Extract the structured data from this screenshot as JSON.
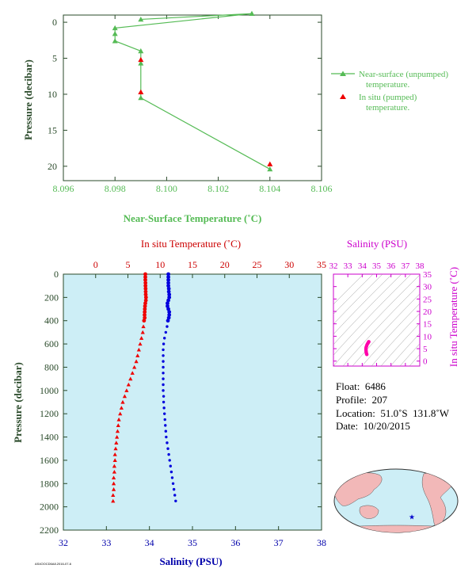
{
  "chart_data": [
    {
      "type": "line",
      "xlabel": "Near-Surface Temperature (˚C)",
      "ylabel": "Pressure (decibar)",
      "xlim": [
        8.096,
        8.106
      ],
      "ylim": [
        22,
        -1
      ],
      "x_ticks": [
        "8.096",
        "8.098",
        "8.100",
        "8.102",
        "8.104",
        "8.106"
      ],
      "y_ticks": [
        "0",
        "5",
        "10",
        "15",
        "20"
      ],
      "grid": false,
      "legend_position": "right",
      "series": [
        {
          "name": "Near-surface (unpumped) temperature.",
          "color": "#55bb55",
          "marker": "triangle",
          "points": [
            {
              "temp": 8.099,
              "pressure": -0.4
            },
            {
              "temp": 8.1033,
              "pressure": -1.2
            },
            {
              "temp": 8.098,
              "pressure": 0.8
            },
            {
              "temp": 8.098,
              "pressure": 1.6
            },
            {
              "temp": 8.098,
              "pressure": 2.6
            },
            {
              "temp": 8.099,
              "pressure": 4.0
            },
            {
              "temp": 8.099,
              "pressure": 5.7
            },
            {
              "temp": 8.099,
              "pressure": 10.5
            },
            {
              "temp": 8.104,
              "pressure": 20.4
            }
          ]
        },
        {
          "name": "In situ (pumped) temperature.",
          "color": "#ee0000",
          "marker": "triangle",
          "points": [
            {
              "temp": 8.099,
              "pressure": 5.2
            },
            {
              "temp": 8.099,
              "pressure": 9.7
            },
            {
              "temp": 8.104,
              "pressure": 19.7
            }
          ]
        }
      ]
    },
    {
      "type": "scatter",
      "top_axis_label": "In situ Temperature (˚C)",
      "bottom_axis_label": "Salinity (PSU)",
      "ylabel": "Pressure (decibar)",
      "temperature_lim": [
        -5,
        35
      ],
      "salinity_lim": [
        32,
        38
      ],
      "ylim": [
        2200,
        0
      ],
      "temperature_ticks": [
        "0",
        "5",
        "10",
        "15",
        "20",
        "25",
        "30",
        "35"
      ],
      "salinity_ticks": [
        "32",
        "33",
        "34",
        "35",
        "36",
        "37",
        "38"
      ],
      "y_ticks": [
        "0",
        "200",
        "400",
        "600",
        "800",
        "1000",
        "1200",
        "1400",
        "1600",
        "1800",
        "2000",
        "2200"
      ],
      "background": "#cdeef6",
      "temperature_color": "#ee0000",
      "salinity_color": "#0000dd",
      "temperature_profile": [
        [
          0,
          7.7
        ],
        [
          25,
          7.7
        ],
        [
          50,
          7.7
        ],
        [
          75,
          7.72
        ],
        [
          100,
          7.72
        ],
        [
          125,
          7.74
        ],
        [
          150,
          7.75
        ],
        [
          175,
          7.76
        ],
        [
          200,
          7.8
        ],
        [
          225,
          7.78
        ],
        [
          250,
          7.7
        ],
        [
          275,
          7.65
        ],
        [
          300,
          7.62
        ],
        [
          325,
          7.6
        ],
        [
          350,
          7.58
        ],
        [
          375,
          7.6
        ],
        [
          400,
          7.5
        ],
        [
          450,
          7.4
        ],
        [
          500,
          7.3
        ],
        [
          550,
          7.1
        ],
        [
          600,
          6.9
        ],
        [
          650,
          6.7
        ],
        [
          700,
          6.5
        ],
        [
          750,
          6.3
        ],
        [
          800,
          6.0
        ],
        [
          850,
          5.7
        ],
        [
          900,
          5.4
        ],
        [
          950,
          5.1
        ],
        [
          1000,
          4.8
        ],
        [
          1050,
          4.5
        ],
        [
          1100,
          4.2
        ],
        [
          1150,
          4.0
        ],
        [
          1200,
          3.8
        ],
        [
          1250,
          3.6
        ],
        [
          1300,
          3.5
        ],
        [
          1350,
          3.4
        ],
        [
          1400,
          3.3
        ],
        [
          1450,
          3.2
        ],
        [
          1500,
          3.1
        ],
        [
          1550,
          3.0
        ],
        [
          1600,
          3.0
        ],
        [
          1650,
          2.9
        ],
        [
          1700,
          2.9
        ],
        [
          1750,
          2.8
        ],
        [
          1800,
          2.8
        ],
        [
          1850,
          2.8
        ],
        [
          1900,
          2.7
        ],
        [
          1950,
          2.7
        ]
      ],
      "salinity_profile": [
        [
          0,
          34.44
        ],
        [
          25,
          34.44
        ],
        [
          50,
          34.44
        ],
        [
          75,
          34.44
        ],
        [
          100,
          34.44
        ],
        [
          125,
          34.45
        ],
        [
          150,
          34.45
        ],
        [
          175,
          34.46
        ],
        [
          200,
          34.46
        ],
        [
          225,
          34.44
        ],
        [
          250,
          34.42
        ],
        [
          275,
          34.42
        ],
        [
          300,
          34.44
        ],
        [
          325,
          34.46
        ],
        [
          350,
          34.46
        ],
        [
          375,
          34.45
        ],
        [
          400,
          34.43
        ],
        [
          450,
          34.41
        ],
        [
          500,
          34.38
        ],
        [
          550,
          34.35
        ],
        [
          600,
          34.33
        ],
        [
          650,
          34.32
        ],
        [
          700,
          34.32
        ],
        [
          750,
          34.32
        ],
        [
          800,
          34.32
        ],
        [
          850,
          34.32
        ],
        [
          900,
          34.32
        ],
        [
          950,
          34.32
        ],
        [
          1000,
          34.32
        ],
        [
          1050,
          34.33
        ],
        [
          1100,
          34.33
        ],
        [
          1150,
          34.34
        ],
        [
          1200,
          34.35
        ],
        [
          1250,
          34.36
        ],
        [
          1300,
          34.37
        ],
        [
          1350,
          34.38
        ],
        [
          1400,
          34.39
        ],
        [
          1450,
          34.41
        ],
        [
          1500,
          34.43
        ],
        [
          1550,
          34.45
        ],
        [
          1600,
          34.47
        ],
        [
          1650,
          34.49
        ],
        [
          1700,
          34.51
        ],
        [
          1750,
          34.53
        ],
        [
          1800,
          34.55
        ],
        [
          1850,
          34.57
        ],
        [
          1900,
          34.59
        ],
        [
          1950,
          34.61
        ]
      ]
    },
    {
      "type": "scatter",
      "xlabel": "Salinity (PSU)",
      "ylabel": "In situ Temperature (˚C)",
      "xlim": [
        32,
        38
      ],
      "ylim": [
        -2,
        35
      ],
      "x_ticks": [
        "32",
        "33",
        "34",
        "35",
        "36",
        "37",
        "38"
      ],
      "y_ticks": [
        "0",
        "5",
        "10",
        "15",
        "20",
        "25",
        "30",
        "35"
      ],
      "color": "#ff00aa",
      "axis_color": "#cc00cc",
      "has_density_contours": true,
      "points": [
        [
          34.32,
          2.7
        ],
        [
          34.3,
          3.0
        ],
        [
          34.28,
          3.5
        ],
        [
          34.27,
          4.0
        ],
        [
          34.26,
          4.5
        ],
        [
          34.26,
          5.0
        ],
        [
          34.27,
          5.5
        ],
        [
          34.3,
          6.0
        ],
        [
          34.33,
          6.5
        ],
        [
          34.37,
          7.0
        ],
        [
          34.42,
          7.4
        ],
        [
          34.44,
          7.7
        ],
        [
          34.46,
          7.8
        ]
      ]
    }
  ],
  "float_info": {
    "float_line": "Float:  6486",
    "profile_line": "Profile:  207",
    "location_line": "Location:  51.0˚S  131.8˚W",
    "date_line": "Date:  10/20/2015"
  },
  "map": {
    "land_color": "#f2b8b8",
    "ocean_color": "#cdeef6",
    "marker_color": "#0000cc",
    "marker_lat": -51.0,
    "marker_lon": -131.8
  },
  "footer_code": "AS4OOCD6A8.2016-07-6"
}
